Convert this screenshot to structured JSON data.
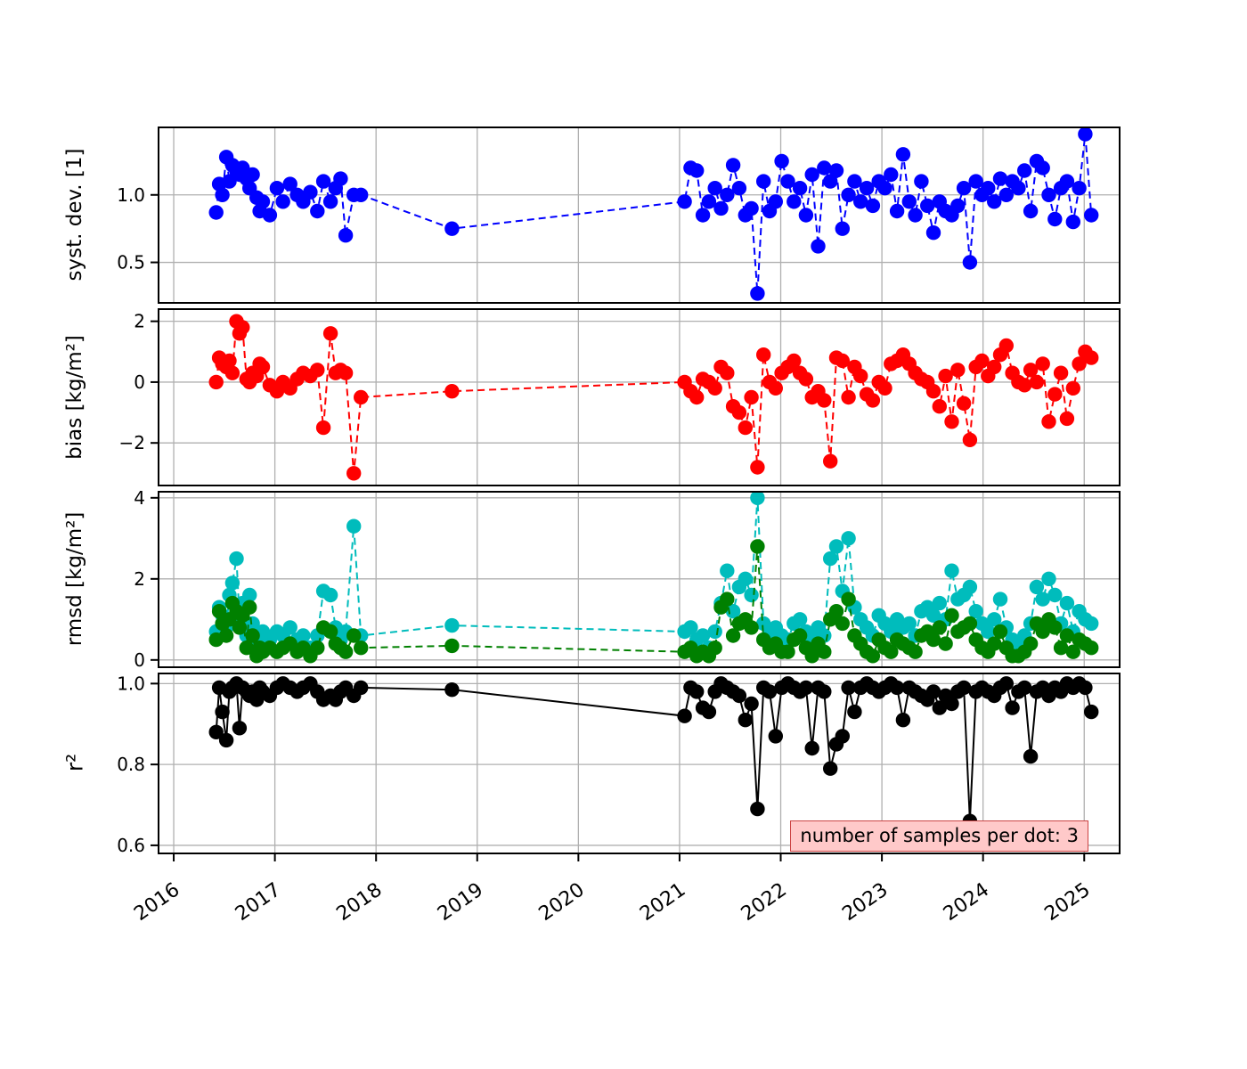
{
  "chart_data": {
    "type": "line",
    "title": "",
    "grid": true,
    "grid_color": "#b0b0b0",
    "x_range": [
      2015.85,
      2025.35
    ],
    "x_ticks": [
      2016,
      2017,
      2018,
      2019,
      2020,
      2021,
      2022,
      2023,
      2024,
      2025
    ],
    "x_tick_labels": [
      "2016",
      "2017",
      "2018",
      "2019",
      "2020",
      "2021",
      "2022",
      "2023",
      "2024",
      "2025"
    ],
    "x": [
      2016.42,
      2016.45,
      2016.48,
      2016.52,
      2016.55,
      2016.58,
      2016.62,
      2016.65,
      2016.68,
      2016.72,
      2016.75,
      2016.78,
      2016.82,
      2016.85,
      2016.88,
      2016.95,
      2017.02,
      2017.08,
      2017.15,
      2017.22,
      2017.28,
      2017.35,
      2017.42,
      2017.48,
      2017.55,
      2017.6,
      2017.65,
      2017.7,
      2017.78,
      2017.85,
      2018.75,
      2021.05,
      2021.11,
      2021.17,
      2021.23,
      2021.29,
      2021.35,
      2021.41,
      2021.47,
      2021.53,
      2021.59,
      2021.65,
      2021.71,
      2021.77,
      2021.83,
      2021.89,
      2021.95,
      2022.01,
      2022.07,
      2022.13,
      2022.19,
      2022.25,
      2022.31,
      2022.37,
      2022.43,
      2022.49,
      2022.55,
      2022.61,
      2022.67,
      2022.73,
      2022.79,
      2022.85,
      2022.91,
      2022.97,
      2023.03,
      2023.09,
      2023.15,
      2023.21,
      2023.27,
      2023.33,
      2023.39,
      2023.45,
      2023.51,
      2023.57,
      2023.63,
      2023.69,
      2023.75,
      2023.81,
      2023.87,
      2023.93,
      2023.99,
      2024.05,
      2024.11,
      2024.17,
      2024.23,
      2024.29,
      2024.35,
      2024.41,
      2024.47,
      2024.53,
      2024.59,
      2024.65,
      2024.71,
      2024.77,
      2024.83,
      2024.89,
      2024.95,
      2025.01,
      2025.07
    ],
    "subplots": [
      {
        "ylabel": "syst. dev. [1]",
        "ylim": [
          0.2,
          1.5
        ],
        "yticks": [
          0.5,
          1.0
        ],
        "ytick_labels": [
          "0.5",
          "1.0"
        ],
        "series": [
          {
            "name": "syst-dev",
            "color": "#0000ff",
            "dashed": true,
            "values": [
              0.87,
              1.08,
              1.0,
              1.28,
              1.1,
              1.22,
              1.18,
              1.15,
              1.2,
              1.12,
              1.05,
              1.15,
              0.98,
              0.88,
              0.95,
              0.85,
              1.05,
              0.95,
              1.08,
              1.0,
              0.95,
              1.02,
              0.88,
              1.1,
              0.95,
              1.05,
              1.12,
              0.7,
              1.0,
              1.0,
              0.75,
              0.95,
              1.2,
              1.18,
              0.85,
              0.95,
              1.05,
              0.9,
              1.0,
              1.22,
              1.05,
              0.85,
              0.9,
              0.27,
              1.1,
              0.88,
              0.95,
              1.25,
              1.1,
              0.95,
              1.05,
              0.85,
              1.15,
              0.62,
              1.2,
              1.1,
              1.18,
              0.75,
              1.0,
              1.1,
              0.95,
              1.05,
              0.92,
              1.1,
              1.05,
              1.15,
              0.88,
              1.3,
              0.95,
              0.85,
              1.1,
              0.92,
              0.72,
              0.95,
              0.88,
              0.85,
              0.92,
              1.05,
              0.5,
              1.1,
              1.0,
              1.05,
              0.95,
              1.12,
              1.0,
              1.1,
              1.05,
              1.18,
              0.88,
              1.25,
              1.2,
              1.0,
              0.82,
              1.05,
              1.1,
              0.8,
              1.05,
              1.45,
              0.85
            ]
          }
        ]
      },
      {
        "ylabel": "bias [kg/m²]",
        "ylim": [
          -3.4,
          2.4
        ],
        "yticks": [
          -2,
          0,
          2
        ],
        "ytick_labels": [
          "−2",
          "0",
          "2"
        ],
        "series": [
          {
            "name": "bias",
            "color": "#ff0000",
            "dashed": true,
            "values": [
              0.0,
              0.8,
              0.6,
              0.5,
              0.7,
              0.3,
              2.0,
              1.6,
              1.8,
              0.1,
              0.0,
              0.3,
              0.2,
              0.6,
              0.5,
              -0.1,
              -0.3,
              0.0,
              -0.2,
              0.1,
              0.3,
              0.2,
              0.4,
              -1.5,
              1.6,
              0.3,
              0.4,
              0.3,
              -3.0,
              -0.5,
              -0.3,
              0.0,
              -0.3,
              -0.5,
              0.1,
              0.0,
              -0.2,
              0.5,
              0.3,
              -0.8,
              -1.0,
              -1.5,
              -0.5,
              -2.8,
              0.9,
              0.0,
              -0.2,
              0.3,
              0.5,
              0.7,
              0.3,
              0.1,
              -0.5,
              -0.3,
              -0.6,
              -2.6,
              0.8,
              0.7,
              -0.5,
              0.5,
              0.2,
              -0.4,
              -0.6,
              0.0,
              -0.2,
              0.6,
              0.7,
              0.9,
              0.6,
              0.3,
              0.1,
              0.0,
              -0.3,
              -0.8,
              0.2,
              -1.3,
              0.4,
              -0.7,
              -1.9,
              0.5,
              0.7,
              0.2,
              0.5,
              0.9,
              1.2,
              0.3,
              0.0,
              -0.1,
              0.4,
              0.0,
              0.6,
              -1.3,
              -0.4,
              0.3,
              -1.2,
              -0.2,
              0.6,
              1.0,
              0.8
            ]
          }
        ]
      },
      {
        "ylabel": "rmsd [kg/m²]",
        "ylim": [
          -0.18,
          4.15
        ],
        "yticks": [
          0,
          2,
          4
        ],
        "ytick_labels": [
          "0",
          "2",
          "4"
        ],
        "series": [
          {
            "name": "rmsd-total",
            "color": "#00bcbc",
            "dashed": true,
            "values": [
              0.7,
              1.3,
              1.1,
              0.8,
              1.6,
              1.9,
              2.5,
              1.0,
              1.4,
              0.6,
              1.6,
              0.9,
              0.5,
              0.6,
              0.7,
              0.5,
              0.7,
              0.6,
              0.8,
              0.5,
              0.6,
              0.3,
              0.6,
              1.7,
              1.6,
              0.8,
              0.5,
              0.7,
              3.3,
              0.6,
              0.85,
              0.7,
              0.8,
              0.5,
              0.6,
              0.3,
              0.7,
              1.4,
              2.2,
              1.2,
              1.8,
              2.0,
              1.6,
              4.0,
              0.9,
              0.7,
              0.8,
              0.6,
              0.5,
              0.9,
              1.0,
              0.7,
              0.5,
              0.8,
              0.6,
              2.5,
              2.8,
              1.7,
              3.0,
              1.3,
              1.0,
              0.8,
              0.6,
              1.1,
              0.9,
              0.7,
              1.0,
              0.8,
              0.9,
              0.6,
              1.2,
              1.3,
              1.1,
              1.4,
              1.0,
              2.2,
              1.5,
              1.6,
              1.8,
              1.2,
              0.9,
              0.7,
              1.0,
              1.5,
              0.8,
              0.5,
              0.4,
              0.6,
              0.9,
              1.8,
              1.5,
              2.0,
              1.6,
              0.9,
              1.4,
              0.7,
              1.2,
              1.0,
              0.9
            ]
          },
          {
            "name": "rmsd-unbiased",
            "color": "#008000",
            "dashed": true,
            "values": [
              0.5,
              1.2,
              0.9,
              0.6,
              1.0,
              1.4,
              1.2,
              0.8,
              1.1,
              0.3,
              1.3,
              0.6,
              0.1,
              0.3,
              0.2,
              0.3,
              0.2,
              0.3,
              0.4,
              0.2,
              0.3,
              0.1,
              0.3,
              0.8,
              0.7,
              0.4,
              0.3,
              0.2,
              0.6,
              0.3,
              0.35,
              0.2,
              0.3,
              0.1,
              0.2,
              0.1,
              0.3,
              1.3,
              1.5,
              0.6,
              0.9,
              1.0,
              0.8,
              2.8,
              0.5,
              0.3,
              0.4,
              0.2,
              0.2,
              0.5,
              0.6,
              0.3,
              0.1,
              0.4,
              0.2,
              1.0,
              1.2,
              0.9,
              1.5,
              0.6,
              0.4,
              0.2,
              0.1,
              0.5,
              0.3,
              0.2,
              0.5,
              0.4,
              0.3,
              0.2,
              0.6,
              0.7,
              0.5,
              0.8,
              0.4,
              1.1,
              0.7,
              0.8,
              0.9,
              0.5,
              0.3,
              0.2,
              0.4,
              0.7,
              0.3,
              0.1,
              0.1,
              0.2,
              0.4,
              0.9,
              0.7,
              1.0,
              0.8,
              0.3,
              0.6,
              0.2,
              0.5,
              0.4,
              0.3
            ]
          }
        ]
      },
      {
        "ylabel": "r²",
        "ylim": [
          0.58,
          1.025
        ],
        "yticks": [
          0.6,
          0.8,
          1.0
        ],
        "ytick_labels": [
          "0.6",
          "0.8",
          "1.0"
        ],
        "series": [
          {
            "name": "r-squared",
            "color": "#000000",
            "dashed": false,
            "values": [
              0.88,
              0.99,
              0.93,
              0.86,
              0.98,
              0.99,
              1.0,
              0.89,
              0.99,
              0.98,
              0.97,
              0.98,
              0.96,
              0.99,
              0.98,
              0.97,
              0.99,
              1.0,
              0.99,
              0.98,
              0.99,
              1.0,
              0.98,
              0.96,
              0.97,
              0.96,
              0.98,
              0.99,
              0.97,
              0.99,
              0.985,
              0.92,
              0.99,
              0.98,
              0.94,
              0.93,
              0.98,
              1.0,
              0.99,
              0.98,
              0.97,
              0.91,
              0.95,
              0.69,
              0.99,
              0.98,
              0.87,
              0.99,
              1.0,
              0.99,
              0.98,
              0.99,
              0.84,
              0.99,
              0.98,
              0.79,
              0.85,
              0.87,
              0.99,
              0.93,
              0.99,
              1.0,
              0.99,
              0.98,
              0.99,
              1.0,
              0.99,
              0.91,
              0.99,
              0.98,
              0.97,
              0.96,
              0.98,
              0.94,
              0.97,
              0.95,
              0.98,
              0.99,
              0.66,
              0.98,
              0.99,
              0.98,
              0.97,
              0.99,
              1.0,
              0.94,
              0.98,
              0.99,
              0.82,
              0.98,
              0.99,
              0.97,
              0.99,
              0.98,
              1.0,
              0.99,
              1.0,
              0.99,
              0.93
            ]
          }
        ]
      }
    ],
    "legend": {
      "text": "number of samples per dot: 3",
      "bg": "#ffc9c9",
      "border": "#cc4444"
    }
  }
}
